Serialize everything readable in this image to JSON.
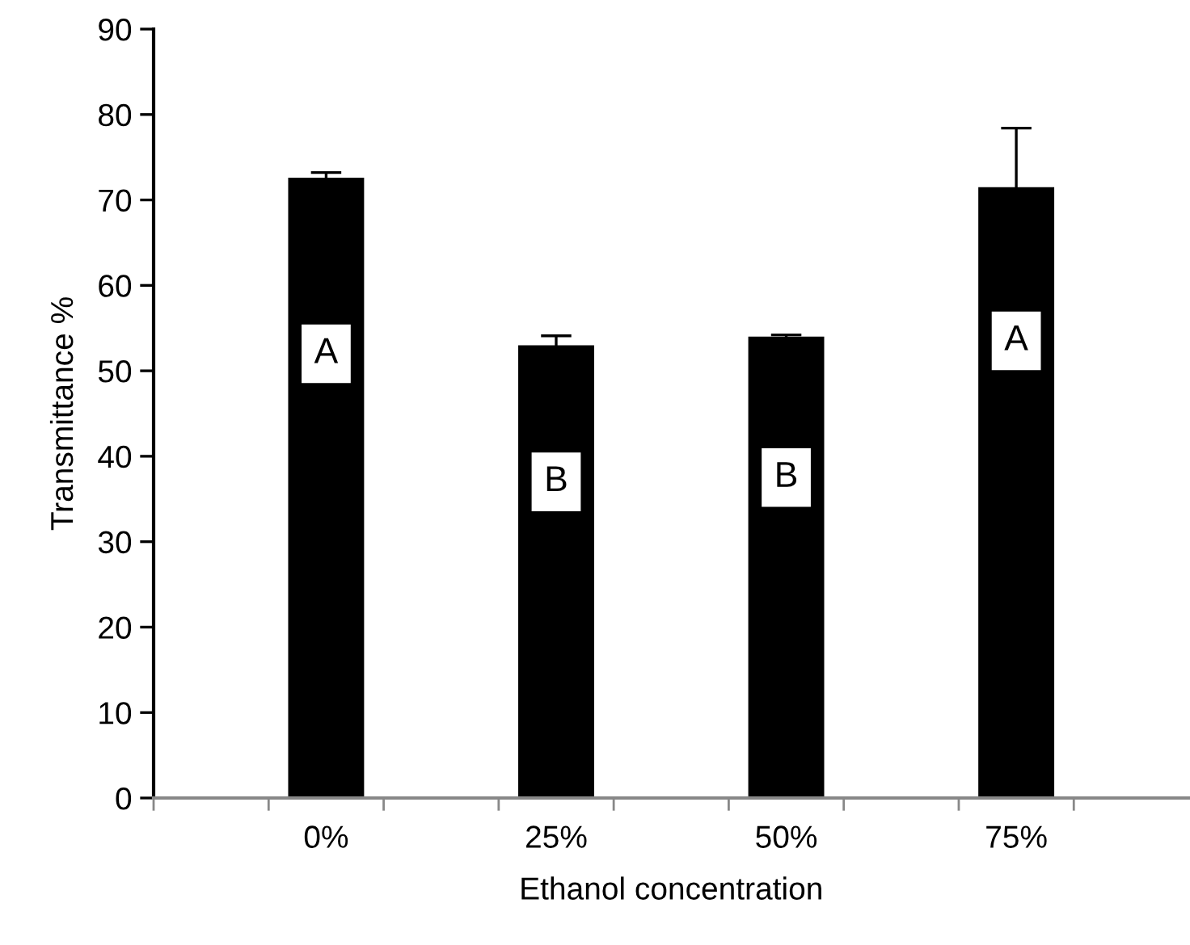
{
  "chart_data": {
    "type": "bar",
    "xlabel": "Ethanol concentration",
    "ylabel": "Transmittance %",
    "categories": [
      "0%",
      "25%",
      "50%",
      "75%"
    ],
    "values": [
      72.6,
      53.0,
      54.0,
      71.5
    ],
    "errors": [
      [
        72.6,
        73.2
      ],
      [
        53.0,
        54.1
      ],
      [
        54.0,
        54.2
      ],
      [
        71.5,
        78.4
      ]
    ],
    "color": "#000000",
    "ylim": [
      0,
      90
    ],
    "yticks": [
      0,
      10,
      20,
      30,
      40,
      50,
      60,
      70,
      80,
      90
    ],
    "grid": false,
    "legend": false,
    "annotations": [
      {
        "text": "A",
        "x": "0%",
        "y": 52
      },
      {
        "text": "B",
        "x": "25%",
        "y": 37
      },
      {
        "text": "B",
        "x": "50%",
        "y": 37.5
      },
      {
        "text": "A",
        "x": "75%",
        "y": 53.5
      }
    ]
  }
}
